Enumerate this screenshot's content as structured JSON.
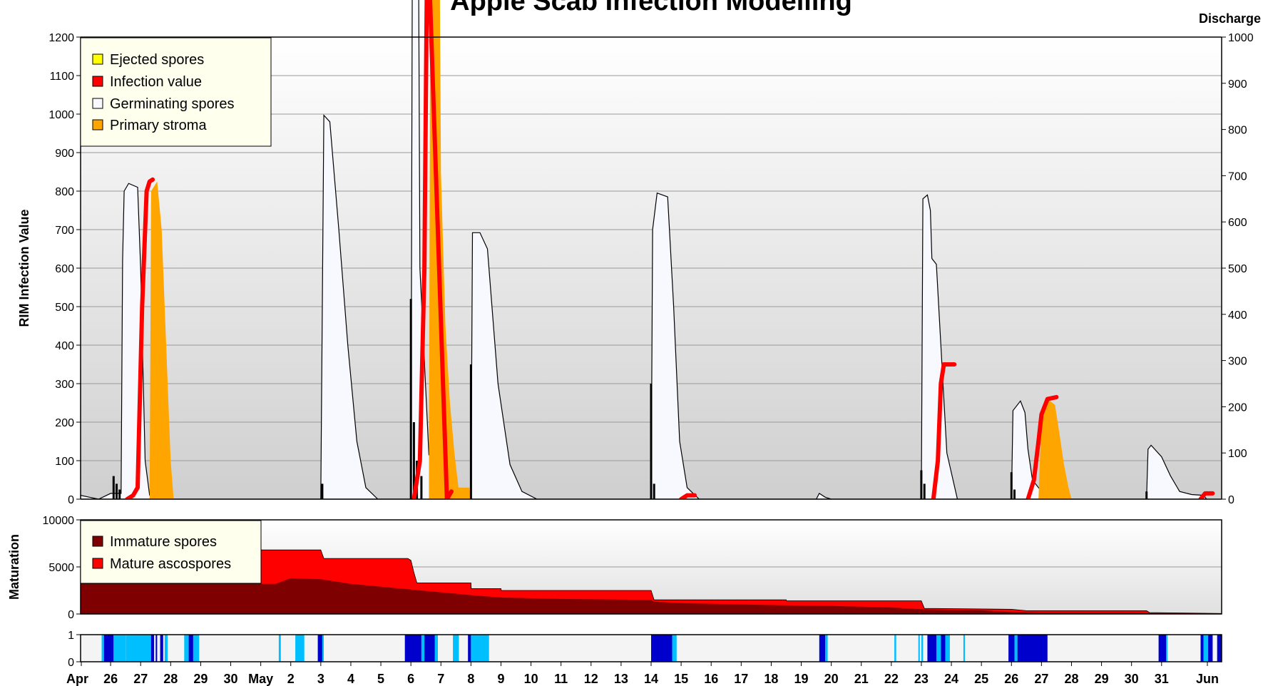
{
  "chart_data": {
    "type": "area",
    "panels": [
      {
        "id": "infection",
        "title": "Apple Scab Infection Modelling",
        "ylabel": "RIM Infection Value",
        "y2label": "Discharge",
        "ylim": [
          0,
          1200
        ],
        "y2lim": [
          0,
          1000
        ],
        "yticks": [
          0,
          100,
          200,
          300,
          400,
          500,
          600,
          700,
          800,
          900,
          1000,
          1100,
          1200
        ],
        "y2ticks": [
          0,
          100,
          200,
          300,
          400,
          500,
          600,
          700,
          800,
          900,
          1000
        ],
        "grid": true,
        "legend_position": "top-left",
        "series": [
          {
            "name": "Ejected spores",
            "color": "#ffff00"
          },
          {
            "name": "Infection value",
            "color": "#ff0000"
          },
          {
            "name": "Germinating spores",
            "color": "#f8f8ff"
          },
          {
            "name": "Primary stroma",
            "color": "#ffa500"
          }
        ],
        "germinating_spores": [
          [
            0,
            10
          ],
          [
            0.3,
            5
          ],
          [
            0.6,
            0
          ],
          [
            1.0,
            15
          ],
          [
            1.35,
            15
          ],
          [
            1.4,
            620
          ],
          [
            1.45,
            800
          ],
          [
            1.6,
            820
          ],
          [
            1.9,
            810
          ],
          [
            2.0,
            600
          ],
          [
            2.15,
            100
          ],
          [
            2.3,
            10
          ],
          [
            2.5,
            0
          ],
          [
            8.0,
            0
          ],
          [
            8.1,
            997
          ],
          [
            8.3,
            980
          ],
          [
            8.6,
            700
          ],
          [
            8.9,
            400
          ],
          [
            9.2,
            150
          ],
          [
            9.5,
            30
          ],
          [
            9.9,
            0
          ],
          [
            11.0,
            0
          ],
          [
            11.05,
            1500
          ],
          [
            11.25,
            1500
          ],
          [
            11.3,
            600
          ],
          [
            11.6,
            115
          ],
          [
            11.9,
            110
          ],
          [
            12.2,
            40
          ],
          [
            12.5,
            5
          ],
          [
            12.7,
            0
          ],
          [
            13.0,
            0
          ],
          [
            13.05,
            692
          ],
          [
            13.3,
            692
          ],
          [
            13.55,
            650
          ],
          [
            13.9,
            300
          ],
          [
            14.3,
            90
          ],
          [
            14.7,
            20
          ],
          [
            15.2,
            0
          ],
          [
            19.0,
            0
          ],
          [
            19.05,
            700
          ],
          [
            19.2,
            795
          ],
          [
            19.55,
            785
          ],
          [
            19.75,
            500
          ],
          [
            19.95,
            150
          ],
          [
            20.2,
            30
          ],
          [
            20.6,
            0
          ],
          [
            24.5,
            0
          ],
          [
            24.6,
            15
          ],
          [
            24.8,
            5
          ],
          [
            25.0,
            0
          ],
          [
            28.0,
            0
          ],
          [
            28.05,
            780
          ],
          [
            28.2,
            790
          ],
          [
            28.3,
            750
          ],
          [
            28.35,
            625
          ],
          [
            28.5,
            610
          ],
          [
            28.65,
            400
          ],
          [
            28.85,
            120
          ],
          [
            29.2,
            0
          ],
          [
            31.0,
            0
          ],
          [
            31.05,
            230
          ],
          [
            31.3,
            255
          ],
          [
            31.45,
            225
          ],
          [
            31.55,
            130
          ],
          [
            31.7,
            50
          ],
          [
            32.0,
            20
          ],
          [
            32.2,
            10
          ],
          [
            32.4,
            0
          ],
          [
            35.5,
            0
          ],
          [
            35.55,
            130
          ],
          [
            35.65,
            140
          ],
          [
            36.0,
            110
          ],
          [
            36.3,
            60
          ],
          [
            36.6,
            20
          ],
          [
            37.0,
            12
          ],
          [
            37.4,
            10
          ],
          [
            37.5,
            0
          ]
        ],
        "infection_value": [
          [
            1.55,
            0
          ],
          [
            1.75,
            10
          ],
          [
            1.9,
            30
          ],
          [
            2.05,
            500
          ],
          [
            2.2,
            800
          ],
          [
            2.3,
            825
          ],
          [
            2.4,
            830
          ],
          [
            11.1,
            0
          ],
          [
            11.3,
            100
          ],
          [
            11.45,
            600
          ],
          [
            11.55,
            1500
          ],
          [
            12.2,
            0
          ],
          [
            12.35,
            20
          ],
          [
            20.0,
            0
          ],
          [
            20.2,
            10
          ],
          [
            20.45,
            10
          ],
          [
            28.4,
            0
          ],
          [
            28.55,
            100
          ],
          [
            28.65,
            300
          ],
          [
            28.75,
            350
          ],
          [
            28.9,
            350
          ],
          [
            29.1,
            350
          ],
          [
            31.55,
            0
          ],
          [
            31.75,
            50
          ],
          [
            31.9,
            150
          ],
          [
            32.0,
            220
          ],
          [
            32.2,
            260
          ],
          [
            32.5,
            265
          ],
          [
            37.3,
            0
          ],
          [
            37.45,
            15
          ],
          [
            37.7,
            15
          ]
        ],
        "primary_stroma": [
          [
            2.3,
            0
          ],
          [
            2.35,
            800
          ],
          [
            2.55,
            825
          ],
          [
            2.7,
            700
          ],
          [
            2.85,
            400
          ],
          [
            3.0,
            100
          ],
          [
            3.1,
            0
          ],
          [
            11.6,
            0
          ],
          [
            11.65,
            1500
          ],
          [
            11.95,
            1500
          ],
          [
            12.0,
            850
          ],
          [
            12.15,
            450
          ],
          [
            12.3,
            250
          ],
          [
            12.45,
            120
          ],
          [
            12.6,
            20
          ],
          [
            12.75,
            0
          ],
          [
            12.4,
            0
          ],
          [
            12.5,
            30
          ],
          [
            12.95,
            30
          ],
          [
            13.0,
            0
          ],
          [
            31.9,
            0
          ],
          [
            32.0,
            220
          ],
          [
            32.2,
            260
          ],
          [
            32.45,
            245
          ],
          [
            32.6,
            170
          ],
          [
            32.75,
            90
          ],
          [
            32.9,
            30
          ],
          [
            33.0,
            0
          ]
        ],
        "ejected_spores": [
          [
            1.1,
            60
          ],
          [
            1.2,
            40
          ],
          [
            1.3,
            25
          ],
          [
            8.05,
            40
          ],
          [
            11.0,
            520
          ],
          [
            11.1,
            200
          ],
          [
            11.2,
            100
          ],
          [
            11.35,
            60
          ],
          [
            13.0,
            350
          ],
          [
            19.0,
            300
          ],
          [
            19.1,
            40
          ],
          [
            28.0,
            75
          ],
          [
            28.1,
            40
          ],
          [
            31.0,
            70
          ],
          [
            31.1,
            25
          ],
          [
            35.5,
            20
          ]
        ]
      },
      {
        "id": "maturation",
        "ylabel": "Maturation",
        "ylim": [
          0,
          10000
        ],
        "yticks": [
          0,
          5000,
          10000
        ],
        "legend_position": "top-left",
        "series": [
          {
            "name": "Immature spores",
            "color": "#7f0000"
          },
          {
            "name": "Mature ascospores",
            "color": "#ff0000"
          }
        ],
        "immature_spores": [
          [
            0,
            3200
          ],
          [
            6.5,
            3200
          ],
          [
            7.0,
            3800
          ],
          [
            8.0,
            3700
          ],
          [
            9.0,
            3200
          ],
          [
            10.0,
            2900
          ],
          [
            11.0,
            2600
          ],
          [
            12.0,
            2300
          ],
          [
            13.0,
            2000
          ],
          [
            14.0,
            1750
          ],
          [
            16.0,
            1600
          ],
          [
            19.0,
            1500
          ],
          [
            19.1,
            1300
          ],
          [
            20.0,
            1150
          ],
          [
            23.0,
            950
          ],
          [
            25.0,
            850
          ],
          [
            27.0,
            700
          ],
          [
            28.0,
            500
          ],
          [
            30.0,
            400
          ],
          [
            31.0,
            200
          ],
          [
            32.0,
            150
          ],
          [
            35.0,
            120
          ],
          [
            36.0,
            60
          ],
          [
            38.0,
            50
          ]
        ],
        "total": [
          [
            0,
            3200
          ],
          [
            6.0,
            3200
          ],
          [
            6.01,
            6800
          ],
          [
            8.0,
            6800
          ],
          [
            8.1,
            5900
          ],
          [
            10.9,
            5900
          ],
          [
            11.0,
            5700
          ],
          [
            11.1,
            4400
          ],
          [
            11.2,
            3300
          ],
          [
            13.0,
            3300
          ],
          [
            13.01,
            2700
          ],
          [
            14.0,
            2700
          ],
          [
            14.01,
            2500
          ],
          [
            19.0,
            2500
          ],
          [
            19.1,
            1500
          ],
          [
            23.5,
            1500
          ],
          [
            23.51,
            1400
          ],
          [
            28.0,
            1400
          ],
          [
            28.1,
            600
          ],
          [
            31.0,
            500
          ],
          [
            31.5,
            350
          ],
          [
            32.0,
            350
          ],
          [
            35.5,
            350
          ],
          [
            35.6,
            150
          ],
          [
            38.0,
            50
          ]
        ]
      },
      {
        "id": "wetness",
        "ylim": [
          0,
          1
        ],
        "yticks": [
          0,
          1
        ],
        "colors": {
          "wet": "#0000cc",
          "moist": "#00bfff"
        },
        "bands": [
          [
            0.7,
            0.78,
            "moist"
          ],
          [
            0.78,
            1.1,
            "wet"
          ],
          [
            1.1,
            1.5,
            "moist"
          ],
          [
            1.5,
            2.35,
            "moist"
          ],
          [
            2.35,
            2.45,
            "wet"
          ],
          [
            2.5,
            2.55,
            "wet"
          ],
          [
            2.65,
            2.75,
            "wet"
          ],
          [
            2.8,
            2.9,
            "moist"
          ],
          [
            3.45,
            3.6,
            "moist"
          ],
          [
            3.6,
            3.75,
            "wet"
          ],
          [
            3.75,
            3.95,
            "moist"
          ],
          [
            6.6,
            6.67,
            "moist"
          ],
          [
            7.15,
            7.45,
            "moist"
          ],
          [
            7.9,
            8.05,
            "wet"
          ],
          [
            8.05,
            8.1,
            "moist"
          ],
          [
            10.8,
            11.35,
            "wet"
          ],
          [
            11.35,
            11.45,
            "moist"
          ],
          [
            11.45,
            11.8,
            "wet"
          ],
          [
            11.8,
            11.9,
            "moist"
          ],
          [
            12.4,
            12.6,
            "moist"
          ],
          [
            12.9,
            13.0,
            "wet"
          ],
          [
            13.0,
            13.6,
            "moist"
          ],
          [
            19.0,
            19.7,
            "wet"
          ],
          [
            19.7,
            19.85,
            "moist"
          ],
          [
            24.6,
            24.8,
            "wet"
          ],
          [
            24.8,
            24.88,
            "moist"
          ],
          [
            27.1,
            27.16,
            "moist"
          ],
          [
            27.9,
            27.95,
            "moist"
          ],
          [
            28.0,
            28.06,
            "moist"
          ],
          [
            28.2,
            28.5,
            "wet"
          ],
          [
            28.5,
            28.65,
            "moist"
          ],
          [
            28.65,
            28.8,
            "wet"
          ],
          [
            28.8,
            28.95,
            "moist"
          ],
          [
            29.4,
            29.45,
            "moist"
          ],
          [
            30.9,
            31.1,
            "wet"
          ],
          [
            31.1,
            31.2,
            "moist"
          ],
          [
            31.2,
            32.2,
            "wet"
          ],
          [
            35.9,
            36.15,
            "wet"
          ],
          [
            36.15,
            36.2,
            "moist"
          ],
          [
            37.3,
            37.4,
            "wet"
          ],
          [
            37.4,
            37.55,
            "moist"
          ],
          [
            37.55,
            37.7,
            "wet"
          ],
          [
            37.85,
            38.0,
            "wet"
          ]
        ]
      }
    ],
    "x_axis": {
      "range": [
        "Apr 25",
        "Jun 1"
      ],
      "tick_labels": [
        "Apr",
        "26",
        "27",
        "28",
        "29",
        "30",
        "May",
        "2",
        "3",
        "4",
        "5",
        "6",
        "7",
        "8",
        "9",
        "10",
        "11",
        "12",
        "13",
        "14",
        "15",
        "16",
        "17",
        "18",
        "19",
        "20",
        "21",
        "22",
        "23",
        "24",
        "25",
        "26",
        "27",
        "28",
        "29",
        "30",
        "31",
        "Jun"
      ]
    }
  }
}
